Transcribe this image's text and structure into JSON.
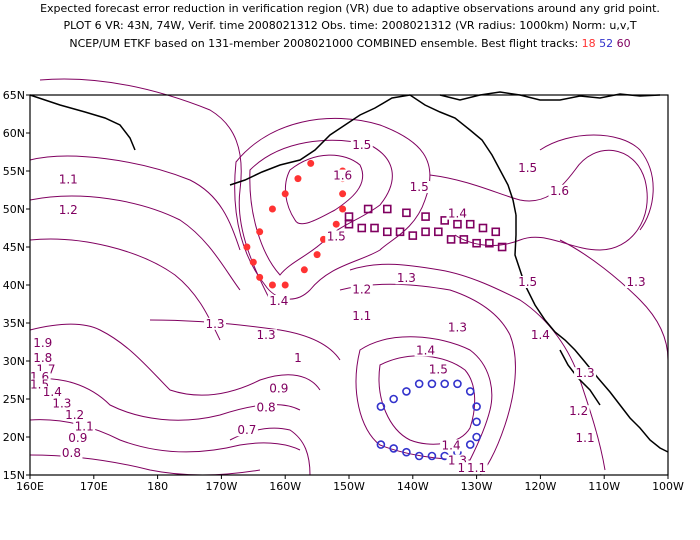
{
  "title": {
    "line1": "Expected forecast error reduction in verification region (VR) due to adaptive observations around any grid point.",
    "line2": "PLOT 6 VR: 43N, 74W, Verif. time 2008021312 Obs. time: 2008021312 (VR radius: 1000km) Norm: u,v,T",
    "line3_prefix": "NCEP/UM ETKF based on 131-member 2008021000 COMBINED ensemble.  Best flight tracks:",
    "track_a": "18",
    "track_b": "52",
    "track_c": "60"
  },
  "axes": {
    "x_ticks": [
      "160E",
      "170E",
      "180",
      "170W",
      "160W",
      "150W",
      "140W",
      "130W",
      "120W",
      "110W",
      "100W"
    ],
    "y_ticks": [
      "15N",
      "20N",
      "25N",
      "30N",
      "35N",
      "40N",
      "45N",
      "50N",
      "55N",
      "60N",
      "65N"
    ]
  },
  "contour_labels": [
    {
      "text": "1.5",
      "lon": -148,
      "lat": 58
    },
    {
      "text": "1.6",
      "lon": -151,
      "lat": 54
    },
    {
      "text": "1.5",
      "lon": -139,
      "lat": 52.5
    },
    {
      "text": "1.4",
      "lon": -133,
      "lat": 49
    },
    {
      "text": "1.5",
      "lon": -152,
      "lat": 46
    },
    {
      "text": "1.5",
      "lon": -122,
      "lat": 55
    },
    {
      "text": "1.6",
      "lon": -117,
      "lat": 52
    },
    {
      "text": "1.5",
      "lon": -122,
      "lat": 40
    },
    {
      "text": "1.3",
      "lon": -105,
      "lat": 40
    },
    {
      "text": "1.4",
      "lon": -120,
      "lat": 33
    },
    {
      "text": "1.3",
      "lon": -113,
      "lat": 28
    },
    {
      "text": "1.2",
      "lon": -114,
      "lat": 23
    },
    {
      "text": "1.1",
      "lon": -113,
      "lat": 19.5
    },
    {
      "text": "1.1",
      "lon": 166,
      "lat": 53.5
    },
    {
      "text": "1.2",
      "lon": 166,
      "lat": 49.5
    },
    {
      "text": "1.4",
      "lon": -161,
      "lat": 37.5
    },
    {
      "text": "1.3",
      "lon": -171,
      "lat": 34.5
    },
    {
      "text": "1.3",
      "lon": -163,
      "lat": 33
    },
    {
      "text": "1.2",
      "lon": -148,
      "lat": 39
    },
    {
      "text": "1.1",
      "lon": -148,
      "lat": 35.5
    },
    {
      "text": "1.3",
      "lon": -141,
      "lat": 40.5
    },
    {
      "text": "1.3",
      "lon": -133,
      "lat": 34
    },
    {
      "text": "1.4",
      "lon": -138,
      "lat": 31
    },
    {
      "text": "1.5",
      "lon": -136,
      "lat": 28.5
    },
    {
      "text": "1.4",
      "lon": -134,
      "lat": 18.5
    },
    {
      "text": "1.3",
      "lon": -133,
      "lat": 16.5
    },
    {
      "text": "1.2",
      "lon": -131.5,
      "lat": 15.5
    },
    {
      "text": "1.1",
      "lon": -130,
      "lat": 15.5
    },
    {
      "text": "1",
      "lon": -158,
      "lat": 30
    },
    {
      "text": "0.9",
      "lon": -161,
      "lat": 26
    },
    {
      "text": "0.8",
      "lon": -163,
      "lat": 23.5
    },
    {
      "text": "0.7",
      "lon": -166,
      "lat": 20.5
    },
    {
      "text": "1.9",
      "lon": 162,
      "lat": 32
    },
    {
      "text": "1.8",
      "lon": 162,
      "lat": 30
    },
    {
      "text": "1.7",
      "lon": 162.5,
      "lat": 28.5
    },
    {
      "text": "1.6",
      "lon": 161.5,
      "lat": 27.5
    },
    {
      "text": "1.5",
      "lon": 161.5,
      "lat": 26.5
    },
    {
      "text": "1.4",
      "lon": 163.5,
      "lat": 25.5
    },
    {
      "text": "1.3",
      "lon": 165,
      "lat": 24
    },
    {
      "text": "1.2",
      "lon": 167,
      "lat": 22.5
    },
    {
      "text": "1.1",
      "lon": 168.5,
      "lat": 21
    },
    {
      "text": "0.9",
      "lon": 167.5,
      "lat": 19.5
    },
    {
      "text": "0.8",
      "lon": 166.5,
      "lat": 17.5
    }
  ],
  "tracks": {
    "red": {
      "color": "#ff3333",
      "points": [
        [
          -156,
          56
        ],
        [
          -158,
          54
        ],
        [
          -160,
          52
        ],
        [
          -162,
          50
        ],
        [
          -164,
          47
        ],
        [
          -166,
          45
        ],
        [
          -165,
          43
        ],
        [
          -164,
          41
        ],
        [
          -162,
          40
        ],
        [
          -160,
          40
        ],
        [
          -157,
          42
        ],
        [
          -155,
          44
        ],
        [
          -154,
          46
        ],
        [
          -152,
          48
        ],
        [
          -151,
          50
        ],
        [
          -151,
          52
        ],
        [
          -151,
          54
        ],
        [
          -151,
          55
        ]
      ]
    },
    "blue": {
      "color": "#3333cc",
      "points": [
        [
          -145,
          24
        ],
        [
          -143,
          25
        ],
        [
          -141,
          26
        ],
        [
          -139,
          27
        ],
        [
          -137,
          27
        ],
        [
          -135,
          27
        ],
        [
          -133,
          27
        ],
        [
          -131,
          26
        ],
        [
          -130,
          24
        ],
        [
          -130,
          22
        ],
        [
          -130,
          20
        ],
        [
          -131,
          19
        ],
        [
          -133,
          18
        ],
        [
          -135,
          17.5
        ],
        [
          -137,
          17.5
        ],
        [
          -139,
          17.5
        ],
        [
          -141,
          18
        ],
        [
          -143,
          18.5
        ],
        [
          -145,
          19
        ]
      ]
    },
    "purple": {
      "color": "#800060",
      "points": [
        [
          -150,
          48
        ],
        [
          -148,
          47.5
        ],
        [
          -146,
          47.5
        ],
        [
          -144,
          47
        ],
        [
          -142,
          47
        ],
        [
          -140,
          46.5
        ],
        [
          -138,
          47
        ],
        [
          -136,
          47
        ],
        [
          -134,
          46
        ],
        [
          -132,
          46
        ],
        [
          -130,
          45.5
        ],
        [
          -128,
          45.5
        ],
        [
          -126,
          45
        ],
        [
          -150,
          49
        ],
        [
          -147,
          50
        ],
        [
          -144,
          50
        ],
        [
          -141,
          49.5
        ],
        [
          -138,
          49
        ],
        [
          -135,
          48.5
        ],
        [
          -133,
          48
        ],
        [
          -131,
          48
        ],
        [
          -129,
          47.5
        ],
        [
          -127,
          47
        ]
      ]
    }
  }
}
